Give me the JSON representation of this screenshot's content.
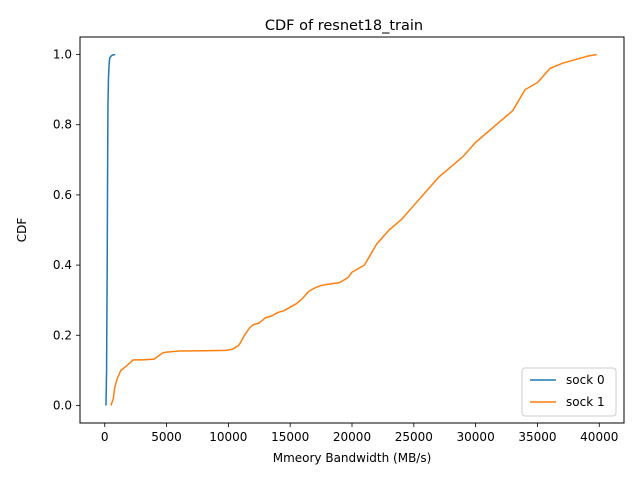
{
  "chart_data": {
    "type": "line",
    "title": "CDF of resnet18_train",
    "xlabel": "Mmeory Bandwidth (MB/s)",
    "ylabel": "CDF",
    "xlim": [
      -2000,
      42000
    ],
    "ylim": [
      -0.05,
      1.05
    ],
    "xticks": [
      "0",
      "5000",
      "10000",
      "15000",
      "20000",
      "25000",
      "30000",
      "35000",
      "40000"
    ],
    "yticks": [
      "0.0",
      "0.2",
      "0.4",
      "0.6",
      "0.8",
      "1.0"
    ],
    "grid": false,
    "legend_position": "bottom-right",
    "series": [
      {
        "name": "sock 0",
        "color": "#1f77b4",
        "x": [
          100,
          150,
          200,
          230,
          260,
          300,
          350,
          400,
          500,
          600,
          700,
          850
        ],
        "y": [
          0.0,
          0.1,
          0.4,
          0.65,
          0.85,
          0.93,
          0.97,
          0.99,
          0.995,
          0.998,
          0.999,
          1.0
        ]
      },
      {
        "name": "sock 1",
        "color": "#ff7f0e",
        "x": [
          500,
          700,
          800,
          1000,
          1300,
          1500,
          2000,
          2300,
          3000,
          4000,
          4300,
          4700,
          5000,
          6000,
          8000,
          9800,
          10300,
          10800,
          11000,
          11300,
          11700,
          12000,
          12500,
          13000,
          13500,
          14000,
          14500,
          15000,
          15500,
          16000,
          16500,
          17000,
          17500,
          18000,
          19000,
          19700,
          20000,
          21000,
          21500,
          22000,
          22500,
          23000,
          24000,
          25000,
          26000,
          27000,
          28000,
          29000,
          30000,
          31000,
          32000,
          33000,
          33500,
          34000,
          35000,
          36000,
          37000,
          38000,
          39000,
          39800
        ],
        "y": [
          0.0,
          0.02,
          0.05,
          0.075,
          0.1,
          0.105,
          0.12,
          0.13,
          0.13,
          0.132,
          0.14,
          0.15,
          0.152,
          0.155,
          0.156,
          0.157,
          0.16,
          0.17,
          0.18,
          0.2,
          0.22,
          0.23,
          0.235,
          0.25,
          0.255,
          0.265,
          0.27,
          0.28,
          0.29,
          0.305,
          0.325,
          0.335,
          0.342,
          0.345,
          0.35,
          0.365,
          0.38,
          0.4,
          0.43,
          0.46,
          0.48,
          0.5,
          0.53,
          0.57,
          0.61,
          0.65,
          0.68,
          0.71,
          0.75,
          0.78,
          0.81,
          0.84,
          0.87,
          0.9,
          0.92,
          0.96,
          0.975,
          0.985,
          0.995,
          1.0
        ]
      }
    ]
  }
}
